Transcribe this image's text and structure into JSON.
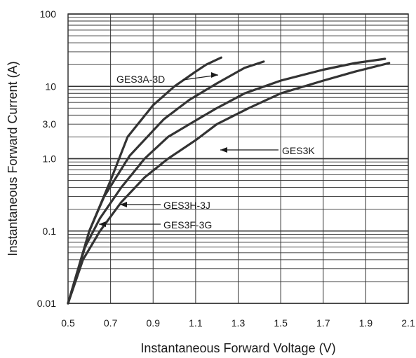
{
  "chart_data": {
    "type": "line",
    "title": "",
    "xlabel": "Instantaneous Forward Voltage (V)",
    "ylabel": "Instantaneous Forward Current (A)",
    "xlim": [
      0.5,
      2.1
    ],
    "ylim": [
      0.01,
      100
    ],
    "yscale": "log",
    "grid": true,
    "x_ticks": [
      0.5,
      0.7,
      0.9,
      1.1,
      1.3,
      1.5,
      1.7,
      1.9,
      2.1
    ],
    "x_tick_labels": [
      "0.5",
      "0.7",
      "0.9",
      "1.1",
      "1.3",
      "1.5",
      "1.7",
      "1.9",
      "2.1"
    ],
    "y_ticks": [
      0.01,
      0.1,
      1.0,
      3.0,
      10,
      100
    ],
    "y_tick_labels": [
      "0.01",
      "0.1",
      "1.0",
      "3.0",
      "10",
      "100"
    ],
    "colors": {
      "curve": "#333333",
      "grid": "#333333",
      "text": "#1a1a1a"
    },
    "series": [
      {
        "name": "GES3A-3D",
        "x": [
          0.5,
          0.6,
          0.7,
          0.78,
          0.9,
          1.0,
          1.1,
          1.15,
          1.22
        ],
        "y": [
          0.01,
          0.1,
          0.5,
          2.0,
          5.5,
          10.0,
          16.0,
          20.0,
          25.0
        ]
      },
      {
        "name": "GES3H-3J",
        "x": [
          0.5,
          0.6,
          0.67,
          0.79,
          0.95,
          1.07,
          1.2,
          1.33,
          1.42
        ],
        "y": [
          0.01,
          0.1,
          0.3,
          1.1,
          3.5,
          6.5,
          11.0,
          18.0,
          22.0
        ]
      },
      {
        "name": "GES3F-3G",
        "x": [
          0.5,
          0.58,
          0.65,
          0.75,
          0.86,
          0.97,
          1.11,
          1.2,
          1.33,
          1.5,
          1.7,
          1.85,
          1.99
        ],
        "y": [
          0.01,
          0.06,
          0.15,
          0.4,
          1.0,
          2.0,
          3.5,
          5.0,
          8.0,
          12.0,
          17.0,
          21.0,
          24.0
        ]
      },
      {
        "name": "GES3K",
        "x": [
          0.5,
          0.57,
          0.65,
          0.75,
          0.86,
          0.97,
          1.1,
          1.2,
          1.35,
          1.5,
          1.7,
          1.85,
          2.01
        ],
        "y": [
          0.01,
          0.04,
          0.1,
          0.25,
          0.55,
          1.0,
          1.8,
          3.0,
          5.0,
          8.0,
          12.0,
          16.0,
          21.0
        ]
      }
    ],
    "annotations": [
      {
        "text": "GES3A-3D",
        "series": "GES3A-3D"
      },
      {
        "text": "GES3H-3J",
        "series": "GES3H-3J"
      },
      {
        "text": "GES3F-3G",
        "series": "GES3F-3G"
      },
      {
        "text": "GES3K",
        "series": "GES3K"
      }
    ]
  }
}
